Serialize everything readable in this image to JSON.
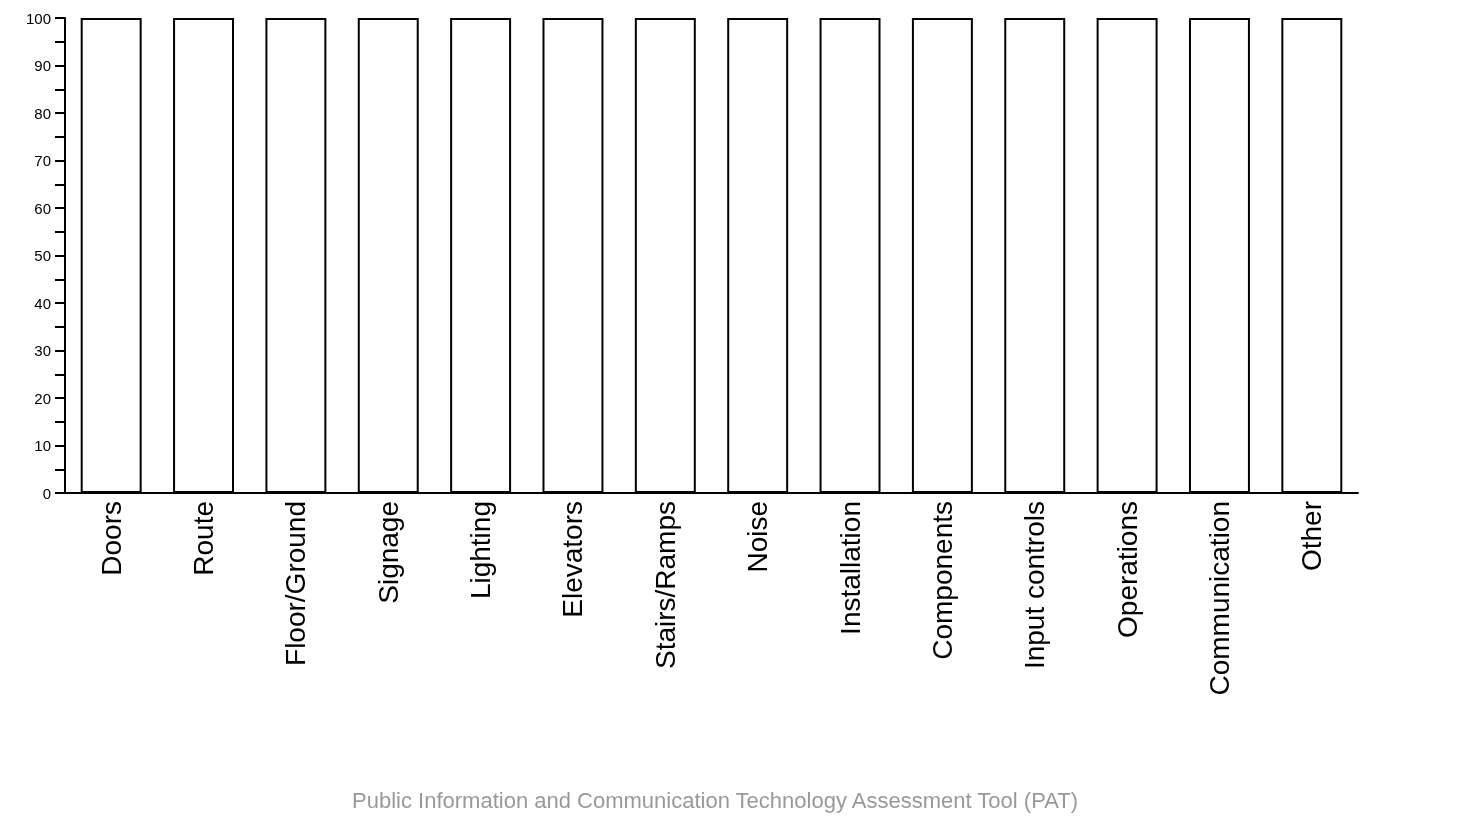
{
  "chart_data": {
    "type": "bar",
    "categories": [
      "Doors",
      "Route",
      "Floor/Ground",
      "Signage",
      "Lighting",
      "Elevators",
      "Stairs/Ramps",
      "Noise",
      "Installation",
      "Components",
      "Input controls",
      "Operations",
      "Communication",
      "Other"
    ],
    "values": [
      100,
      100,
      100,
      100,
      100,
      100,
      100,
      100,
      100,
      100,
      100,
      100,
      100,
      100
    ],
    "color": "#ffffff",
    "ylim": [
      0,
      100
    ],
    "yticks": [
      0,
      10,
      20,
      30,
      40,
      50,
      60,
      70,
      80,
      90,
      100
    ],
    "grid": false,
    "annotations": [
      "Public Information and Communication Technology Assessment Tool (PAT)"
    ]
  }
}
